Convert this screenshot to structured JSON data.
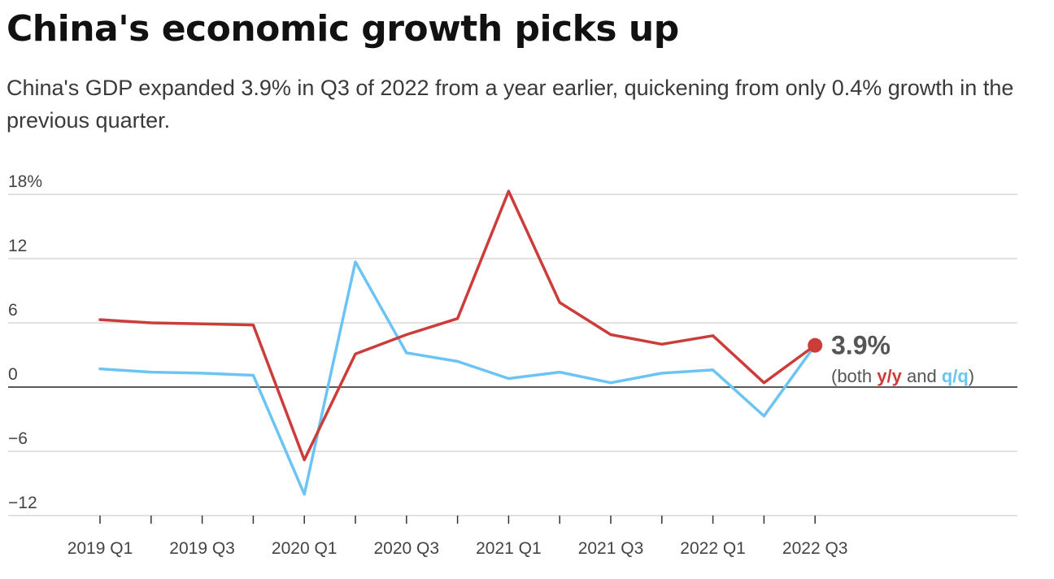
{
  "title": "China's economic growth picks up",
  "subtitle": "China's GDP expanded 3.9% in Q3 of 2022 from a year earlier, quickening from only 0.4% growth in the previous quarter.",
  "colors": {
    "yy": "#cc3d3a",
    "qq": "#6cc4f4",
    "grid": "#cfcfcf",
    "zero": "#222222",
    "text": "#444444"
  },
  "chart_data": {
    "type": "line",
    "title": "China's economic growth picks up",
    "xlabel": "",
    "ylabel": "",
    "ylim": [
      -12,
      18
    ],
    "yticks": [
      18,
      12,
      6,
      0,
      -6,
      -12
    ],
    "ytick_labels": [
      "18%",
      "12",
      "6",
      "0",
      "−6",
      "−12"
    ],
    "categories": [
      "2019 Q1",
      "2019 Q2",
      "2019 Q3",
      "2019 Q4",
      "2020 Q1",
      "2020 Q2",
      "2020 Q3",
      "2020 Q4",
      "2021 Q1",
      "2021 Q2",
      "2021 Q3",
      "2021 Q4",
      "2022 Q1",
      "2022 Q2",
      "2022 Q3"
    ],
    "xtick_labels": [
      "2019 Q1",
      "2019 Q3",
      "2020 Q1",
      "2020 Q3",
      "2021 Q1",
      "2021 Q3",
      "2022 Q1",
      "2022 Q3"
    ],
    "series": [
      {
        "name": "y/y",
        "values": [
          6.3,
          6.0,
          5.9,
          5.8,
          -6.8,
          3.1,
          4.9,
          6.4,
          18.3,
          7.9,
          4.9,
          4.0,
          4.8,
          0.4,
          3.9
        ]
      },
      {
        "name": "q/q",
        "values": [
          1.7,
          1.4,
          1.3,
          1.1,
          -10.0,
          11.7,
          3.2,
          2.4,
          0.8,
          1.4,
          0.4,
          1.3,
          1.6,
          -2.7,
          3.9
        ]
      }
    ],
    "annotation": {
      "value": "3.9%",
      "prefix": "(both ",
      "yy_label": "y/y",
      "middle": " and ",
      "qq_label": "q/q",
      "suffix": ")"
    }
  }
}
